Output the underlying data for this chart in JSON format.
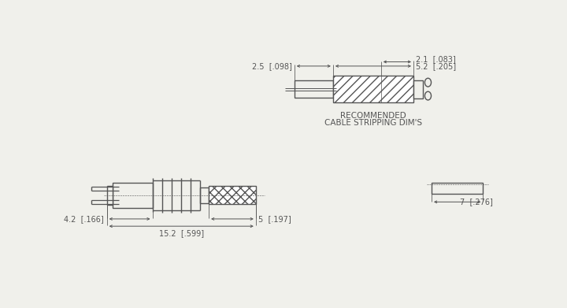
{
  "bg_color": "#f0f0eb",
  "line_color": "#555555",
  "dim_21": "2.1  [.083]",
  "dim_52": "5.2  [.205]",
  "dim_25": "2.5  [.098]",
  "dim_42": "4.2  [.166]",
  "dim_5": "5  [.197]",
  "dim_152": "15.2  [.599]",
  "dim_7": "7  [.276]",
  "title_text1": "RECOMMENDED",
  "title_text2": "CABLE STRIPPING DIM'S",
  "lw_main": 1.0,
  "lw_dim": 0.7,
  "fontsize": 7.0
}
